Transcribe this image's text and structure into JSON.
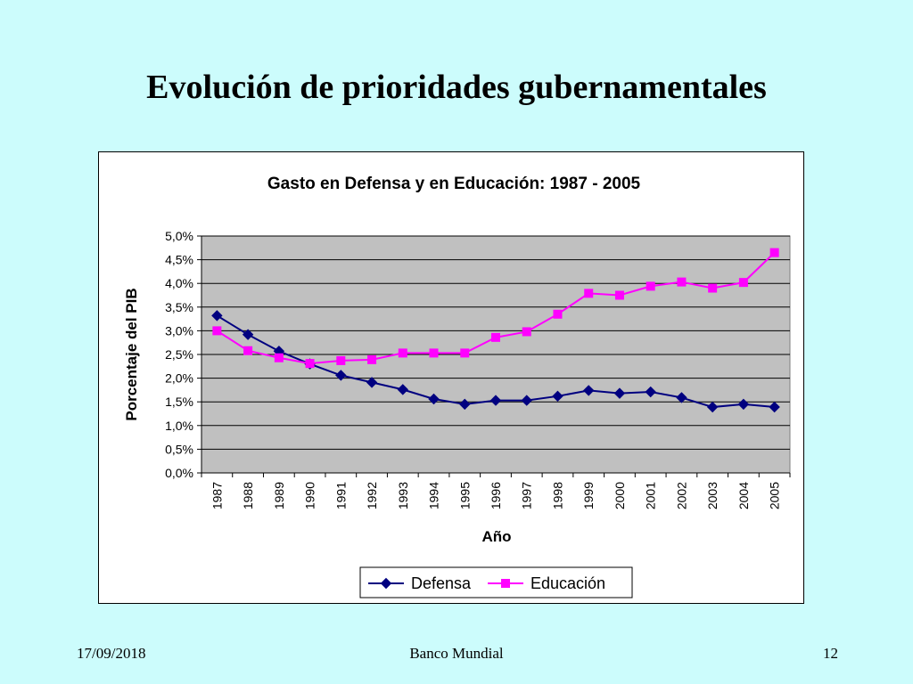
{
  "slide": {
    "title": "Evolución de prioridades gubernamentales"
  },
  "footer": {
    "date": "17/09/2018",
    "center": "Banco Mundial",
    "page": "12"
  },
  "colors": {
    "background": "#ccfcfc",
    "plot_area": "#c0c0c0",
    "defensa": "#000080",
    "educacion": "#ff00ff"
  },
  "chart_data": {
    "type": "line",
    "title": "Gasto en Defensa y en Educación: 1987 - 2005",
    "xlabel": "Año",
    "ylabel": "Porcentaje del PIB",
    "ylim": [
      0,
      5
    ],
    "y_ticks": [
      "0,0%",
      "0,5%",
      "1,0%",
      "1,5%",
      "2,0%",
      "2,5%",
      "3,0%",
      "3,5%",
      "4,0%",
      "4,5%",
      "5,0%"
    ],
    "grid": true,
    "legend_position": "bottom",
    "x": [
      "1987",
      "1988",
      "1989",
      "1990",
      "1991",
      "1992",
      "1993",
      "1994",
      "1995",
      "1996",
      "1997",
      "1998",
      "1999",
      "2000",
      "2001",
      "2002",
      "2003",
      "2004",
      "2005"
    ],
    "series": [
      {
        "name": "Defensa",
        "marker": "diamond",
        "values": [
          3.32,
          2.92,
          2.57,
          2.3,
          2.06,
          1.91,
          1.76,
          1.56,
          1.45,
          1.53,
          1.53,
          1.62,
          1.74,
          1.68,
          1.71,
          1.59,
          1.39,
          1.45,
          1.39
        ]
      },
      {
        "name": "Educación",
        "marker": "square",
        "values": [
          3.0,
          2.58,
          2.43,
          2.31,
          2.37,
          2.39,
          2.53,
          2.53,
          2.53,
          2.86,
          2.98,
          3.35,
          3.79,
          3.75,
          3.94,
          4.03,
          3.9,
          4.02,
          4.65
        ]
      }
    ]
  }
}
